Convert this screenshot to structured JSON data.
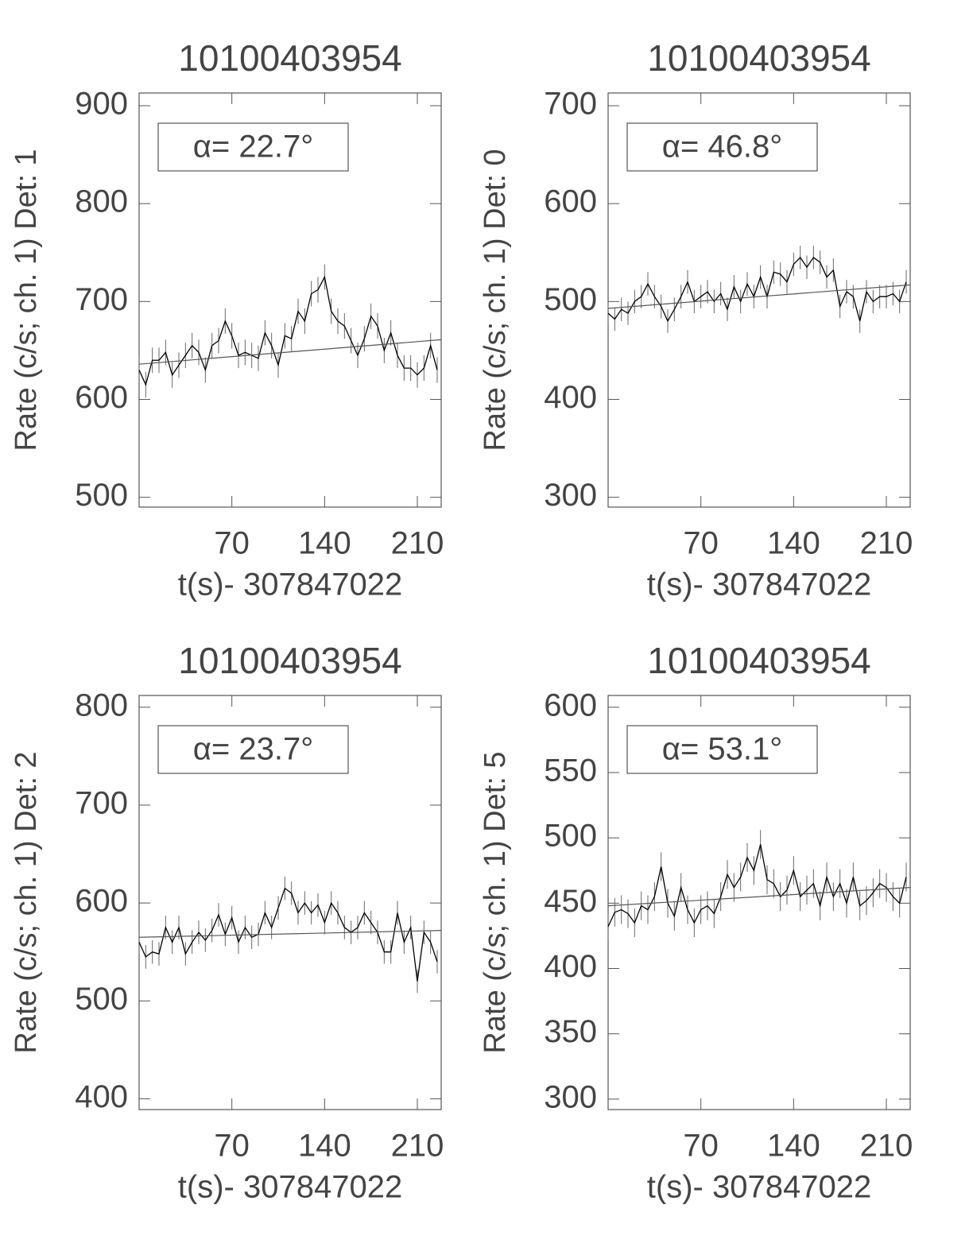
{
  "chart_data": [
    {
      "type": "line",
      "title": "10100403954",
      "annotation": "α= 22.7°",
      "xlabel": "t(s)- 307847022",
      "ylabel": "Rate (c/s; ch. 1) Det: 1",
      "xlim": [
        0,
        228
      ],
      "xticks": [
        70,
        140,
        210
      ],
      "ylim": [
        490,
        913
      ],
      "yticks": [
        500,
        600,
        700,
        800,
        900
      ],
      "x": [
        0,
        5,
        10,
        15,
        20,
        25,
        30,
        35,
        40,
        45,
        50,
        55,
        60,
        65,
        70,
        75,
        80,
        85,
        90,
        95,
        100,
        105,
        110,
        115,
        120,
        125,
        130,
        135,
        140,
        145,
        150,
        155,
        160,
        165,
        170,
        175,
        180,
        185,
        190,
        195,
        200,
        205,
        210,
        215,
        220,
        225
      ],
      "values": [
        630,
        615,
        640,
        640,
        648,
        625,
        635,
        645,
        655,
        648,
        630,
        655,
        660,
        680,
        665,
        645,
        648,
        645,
        642,
        668,
        655,
        635,
        665,
        662,
        690,
        680,
        708,
        712,
        725,
        690,
        680,
        675,
        660,
        645,
        662,
        685,
        675,
        650,
        668,
        645,
        632,
        632,
        625,
        632,
        655,
        630
      ],
      "yerr": 13,
      "color": "#000000",
      "fit": {
        "x": [
          0,
          228
        ],
        "values": [
          636,
          661
        ],
        "color": "#555555"
      }
    },
    {
      "type": "line",
      "title": "10100403954",
      "annotation": "α= 46.8°",
      "xlabel": "t(s)- 307847022",
      "ylabel": "Rate (c/s; ch. 1) Det: 0",
      "xlim": [
        0,
        228
      ],
      "xticks": [
        70,
        140,
        210
      ],
      "ylim": [
        290,
        713
      ],
      "yticks": [
        300,
        400,
        500,
        600,
        700
      ],
      "x": [
        0,
        5,
        10,
        15,
        20,
        25,
        30,
        35,
        40,
        45,
        50,
        55,
        60,
        65,
        70,
        75,
        80,
        85,
        90,
        95,
        100,
        105,
        110,
        115,
        120,
        125,
        130,
        135,
        140,
        145,
        150,
        155,
        160,
        165,
        170,
        175,
        180,
        185,
        190,
        195,
        200,
        205,
        210,
        215,
        220,
        225
      ],
      "values": [
        488,
        482,
        492,
        488,
        500,
        505,
        518,
        505,
        495,
        480,
        492,
        505,
        520,
        500,
        505,
        510,
        500,
        508,
        492,
        515,
        500,
        518,
        505,
        525,
        505,
        530,
        528,
        520,
        538,
        545,
        535,
        545,
        540,
        525,
        532,
        495,
        510,
        505,
        480,
        510,
        500,
        505,
        505,
        508,
        500,
        520
      ],
      "yerr": 12,
      "color": "#000000",
      "fit": {
        "x": [
          0,
          228
        ],
        "values": [
          493,
          517
        ],
        "color": "#555555"
      }
    },
    {
      "type": "line",
      "title": "10100403954",
      "annotation": "α= 23.7°",
      "xlabel": "t(s)- 307847022",
      "ylabel": "Rate (c/s; ch. 1) Det: 2",
      "xlim": [
        0,
        228
      ],
      "xticks": [
        70,
        140,
        210
      ],
      "ylim": [
        389,
        812
      ],
      "yticks": [
        400,
        500,
        600,
        700,
        800
      ],
      "x": [
        0,
        5,
        10,
        15,
        20,
        25,
        30,
        35,
        40,
        45,
        50,
        55,
        60,
        65,
        70,
        75,
        80,
        85,
        90,
        95,
        100,
        105,
        110,
        115,
        120,
        125,
        130,
        135,
        140,
        145,
        150,
        155,
        160,
        165,
        170,
        175,
        180,
        185,
        190,
        195,
        200,
        205,
        210,
        215,
        220,
        225
      ],
      "values": [
        560,
        545,
        550,
        548,
        575,
        560,
        575,
        548,
        560,
        570,
        562,
        572,
        588,
        568,
        585,
        560,
        575,
        565,
        568,
        590,
        575,
        595,
        615,
        610,
        590,
        600,
        590,
        598,
        580,
        600,
        590,
        575,
        570,
        575,
        590,
        580,
        570,
        550,
        550,
        590,
        560,
        575,
        520,
        570,
        560,
        540
      ],
      "yerr": 12,
      "color": "#000000",
      "fit": {
        "x": [
          0,
          228
        ],
        "values": [
          565,
          572
        ],
        "color": "#555555"
      }
    },
    {
      "type": "line",
      "title": "10100403954",
      "annotation": "α= 53.1°",
      "xlabel": "t(s)- 307847022",
      "ylabel": "Rate (c/s; ch. 1) Det: 5",
      "xlim": [
        0,
        228
      ],
      "xticks": [
        70,
        140,
        210
      ],
      "ylim": [
        292,
        609
      ],
      "yticks": [
        300,
        350,
        400,
        450,
        500,
        550,
        600
      ],
      "x": [
        0,
        5,
        10,
        15,
        20,
        25,
        30,
        35,
        40,
        45,
        50,
        55,
        60,
        65,
        70,
        75,
        80,
        85,
        90,
        95,
        100,
        105,
        110,
        115,
        120,
        125,
        130,
        135,
        140,
        145,
        150,
        155,
        160,
        165,
        170,
        175,
        180,
        185,
        190,
        195,
        200,
        205,
        210,
        215,
        220,
        225
      ],
      "values": [
        432,
        443,
        445,
        442,
        435,
        448,
        445,
        455,
        478,
        450,
        440,
        462,
        445,
        435,
        445,
        448,
        442,
        455,
        472,
        462,
        470,
        485,
        475,
        495,
        468,
        465,
        455,
        460,
        475,
        455,
        460,
        465,
        448,
        470,
        455,
        465,
        450,
        470,
        448,
        452,
        458,
        465,
        462,
        455,
        450,
        470
      ],
      "yerr": 11,
      "color": "#000000",
      "fit": {
        "x": [
          0,
          228
        ],
        "values": [
          448,
          462
        ],
        "color": "#555555"
      }
    }
  ]
}
